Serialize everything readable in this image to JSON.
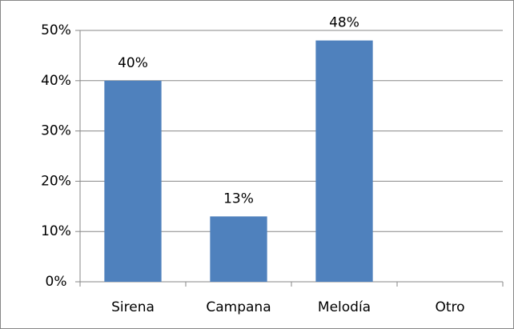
{
  "chart_data": {
    "type": "bar",
    "categories": [
      "Sirena",
      "Campana",
      "Melodía",
      "Otro"
    ],
    "values": [
      40,
      13,
      48,
      0
    ],
    "value_labels": [
      "40%",
      "13%",
      "48%",
      null
    ],
    "color": "#4f81bd",
    "ylim": [
      0,
      50
    ],
    "yticks": [
      {
        "value": 0,
        "label": "0%"
      },
      {
        "value": 10,
        "label": "10%"
      },
      {
        "value": 20,
        "label": "20%"
      },
      {
        "value": 30,
        "label": "30%"
      },
      {
        "value": 40,
        "label": "40%"
      },
      {
        "value": 50,
        "label": "50%"
      }
    ],
    "grid": true
  }
}
